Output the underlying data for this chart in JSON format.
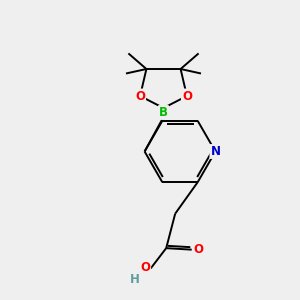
{
  "background_color": "#efefef",
  "bond_color": "#000000",
  "atom_colors": {
    "O": "#ff0000",
    "N": "#0000cd",
    "B": "#00bb00",
    "C": "#000000",
    "H": "#5f9ea0",
    "OH": "#ff0000"
  },
  "figsize": [
    3.0,
    3.0
  ],
  "dpi": 100,
  "lw": 1.4,
  "fs": 8.5
}
